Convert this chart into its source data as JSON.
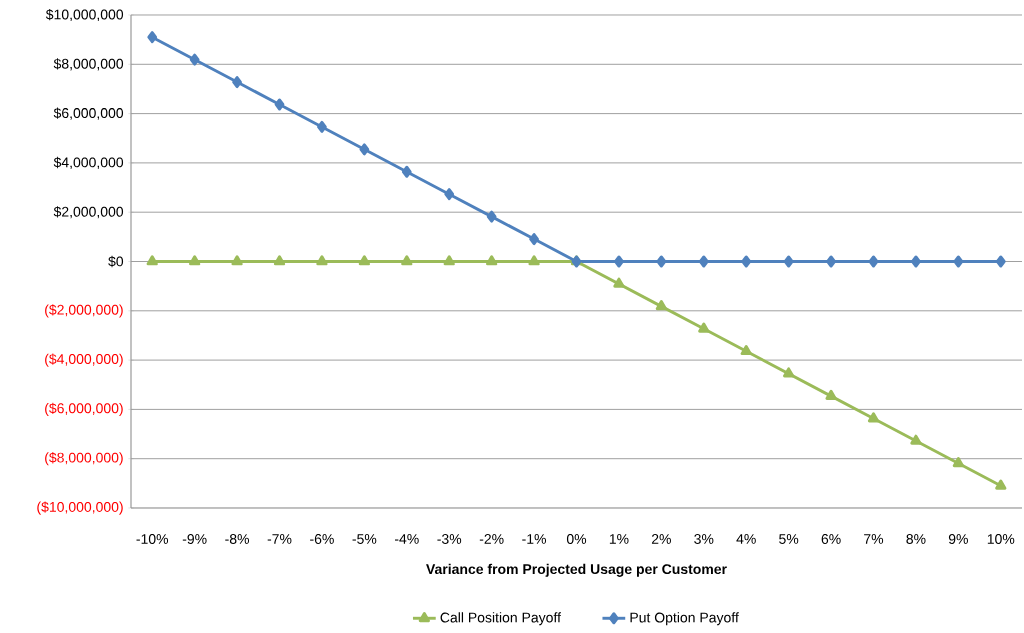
{
  "chart_data": {
    "type": "line",
    "xlabel": "Variance from Projected Usage per Customer",
    "categories": [
      "-10%",
      "-9%",
      "-8%",
      "-7%",
      "-6%",
      "-5%",
      "-4%",
      "-3%",
      "-2%",
      "-1%",
      "0%",
      "1%",
      "2%",
      "3%",
      "4%",
      "5%",
      "6%",
      "7%",
      "8%",
      "9%",
      "10%"
    ],
    "series": [
      {
        "name": "Call Position Payoff",
        "color": "#9bbb59",
        "marker": "triangle",
        "values": [
          0,
          0,
          0,
          0,
          0,
          0,
          0,
          0,
          0,
          0,
          0,
          -910000,
          -1820000,
          -2730000,
          -3640000,
          -4550000,
          -5460000,
          -6370000,
          -7280000,
          -8190000,
          -9100000
        ]
      },
      {
        "name": "Put Option Payoff",
        "color": "#4f81bd",
        "marker": "diamond",
        "values": [
          9100000,
          8190000,
          7280000,
          6370000,
          5460000,
          4550000,
          3640000,
          2730000,
          1820000,
          910000,
          0,
          0,
          0,
          0,
          0,
          0,
          0,
          0,
          0,
          0,
          0
        ]
      }
    ],
    "ylim": [
      -10000000,
      10000000
    ],
    "yticks": [
      {
        "value": -10000000,
        "label": "($10,000,000)"
      },
      {
        "value": -8000000,
        "label": "($8,000,000)"
      },
      {
        "value": -6000000,
        "label": "($6,000,000)"
      },
      {
        "value": -4000000,
        "label": "($4,000,000)"
      },
      {
        "value": -2000000,
        "label": "($2,000,000)"
      },
      {
        "value": 0,
        "label": "$0"
      },
      {
        "value": 2000000,
        "label": "$2,000,000"
      },
      {
        "value": 4000000,
        "label": "$4,000,000"
      },
      {
        "value": 6000000,
        "label": "$6,000,000"
      },
      {
        "value": 8000000,
        "label": "$8,000,000"
      },
      {
        "value": 10000000,
        "label": "$10,000,000"
      }
    ],
    "grid": "y",
    "legend": "bottom",
    "line_style": "solid"
  }
}
